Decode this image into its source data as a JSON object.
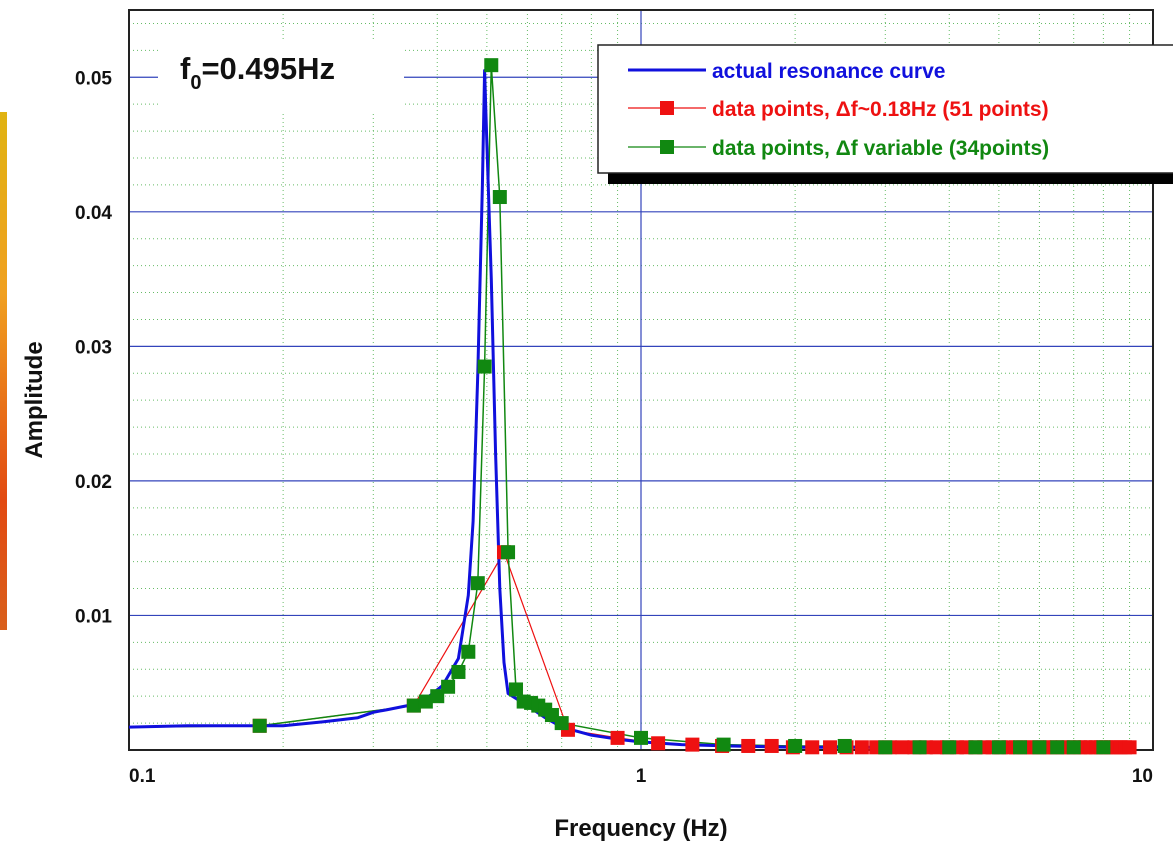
{
  "chart_data": {
    "type": "line",
    "xscale": "log",
    "xlim": [
      0.1,
      10
    ],
    "ylim": [
      0,
      0.055
    ],
    "xlabel": "Frequency (Hz)",
    "ylabel": "Amplitude",
    "xticks": [
      0.1,
      1,
      10
    ],
    "xtick_labels": [
      "0.1",
      "1",
      "10"
    ],
    "yticks": [
      0.01,
      0.02,
      0.03,
      0.04,
      0.05
    ],
    "ytick_labels": [
      "0.01",
      "0.02",
      "0.03",
      "0.04",
      "0.05"
    ],
    "grid": true,
    "annotation": {
      "main": "f",
      "sub": "0",
      "rest": "=0.495Hz"
    },
    "legend": {
      "position": "top-right",
      "entries": [
        {
          "label": "actual resonance curve",
          "color": "#1010dd",
          "marker": "none"
        },
        {
          "label": "data points, Δf~0.18Hz (51 points)",
          "color": "#ee1111",
          "marker": "square"
        },
        {
          "label": "data points, Δf variable (34points)",
          "color": "#118811",
          "marker": "square"
        }
      ]
    },
    "colors": {
      "actual": "#1010dd",
      "fixed": "#ee1111",
      "variable": "#118811",
      "major_grid": "#3344bb",
      "minor_grid": "#66bb66"
    },
    "series": [
      {
        "key": "actual",
        "x": [
          0.1,
          0.13,
          0.16,
          0.2,
          0.24,
          0.28,
          0.3,
          0.32,
          0.35,
          0.38,
          0.41,
          0.44,
          0.46,
          0.47,
          0.48,
          0.49,
          0.495,
          0.5,
          0.51,
          0.52,
          0.53,
          0.54,
          0.55,
          0.6,
          0.65,
          0.7,
          0.8,
          0.9,
          1.0,
          1.2,
          1.5,
          2.0,
          3.0,
          5.0,
          7.0,
          9.0
        ],
        "y": [
          0.0017,
          0.0018,
          0.0018,
          0.0018,
          0.0021,
          0.0024,
          0.0028,
          0.003,
          0.0033,
          0.0038,
          0.0048,
          0.0068,
          0.0115,
          0.017,
          0.028,
          0.042,
          0.0505,
          0.045,
          0.035,
          0.022,
          0.012,
          0.0065,
          0.0042,
          0.0033,
          0.0024,
          0.0017,
          0.0011,
          0.0008,
          0.0006,
          0.0004,
          0.0003,
          0.0002,
          0.0002,
          0.0002,
          0.0002,
          0.0002
        ]
      },
      {
        "key": "fixed",
        "x": [
          0.1,
          0.18,
          0.36,
          0.54,
          0.72,
          0.9,
          1.08,
          1.26,
          1.44,
          1.62,
          1.8,
          1.98,
          2.16,
          2.34,
          2.52,
          2.7,
          2.88,
          3.06,
          3.24,
          3.42,
          3.6,
          3.78,
          3.96,
          4.14,
          4.32,
          4.5,
          4.68,
          4.86,
          5.04,
          5.22,
          5.4,
          5.58,
          5.76,
          5.94,
          6.12,
          6.3,
          6.48,
          6.66,
          6.84,
          7.02,
          7.2,
          7.38,
          7.56,
          7.74,
          7.92,
          8.1,
          8.28,
          8.46,
          8.64,
          8.82,
          9.0
        ],
        "y": [
          0.0017,
          0.0018,
          0.0033,
          0.0147,
          0.0015,
          0.0009,
          0.0005,
          0.0004,
          0.0003,
          0.0003,
          0.0003,
          0.0002,
          0.0002,
          0.0002,
          0.0002,
          0.0002,
          0.0002,
          0.0002,
          0.0002,
          0.0002,
          0.0002,
          0.0002,
          0.0002,
          0.0002,
          0.0002,
          0.0002,
          0.0002,
          0.0002,
          0.0002,
          0.0002,
          0.0002,
          0.0002,
          0.0002,
          0.0002,
          0.0002,
          0.0002,
          0.0002,
          0.0002,
          0.0002,
          0.0002,
          0.0002,
          0.0002,
          0.0002,
          0.0002,
          0.0002,
          0.0002,
          0.0002,
          0.0002,
          0.0002,
          0.0002,
          0.0002
        ]
      },
      {
        "key": "variable",
        "x": [
          0.1,
          0.18,
          0.36,
          0.38,
          0.4,
          0.42,
          0.44,
          0.46,
          0.48,
          0.495,
          0.51,
          0.53,
          0.55,
          0.57,
          0.59,
          0.61,
          0.63,
          0.65,
          0.67,
          0.7,
          1.0,
          1.45,
          2.0,
          2.5,
          3.0,
          3.5,
          4.0,
          4.5,
          5.0,
          5.5,
          6.0,
          6.5,
          7.0,
          8.0
        ],
        "y": [
          0.0017,
          0.0018,
          0.0033,
          0.0036,
          0.004,
          0.0047,
          0.0058,
          0.0073,
          0.0124,
          0.0285,
          0.0509,
          0.0411,
          0.0147,
          0.0045,
          0.0036,
          0.0035,
          0.0033,
          0.003,
          0.0026,
          0.002,
          0.0009,
          0.0004,
          0.0003,
          0.0003,
          0.0002,
          0.0002,
          0.0002,
          0.0002,
          0.0002,
          0.0002,
          0.0002,
          0.0002,
          0.0002,
          0.0002
        ]
      }
    ]
  }
}
